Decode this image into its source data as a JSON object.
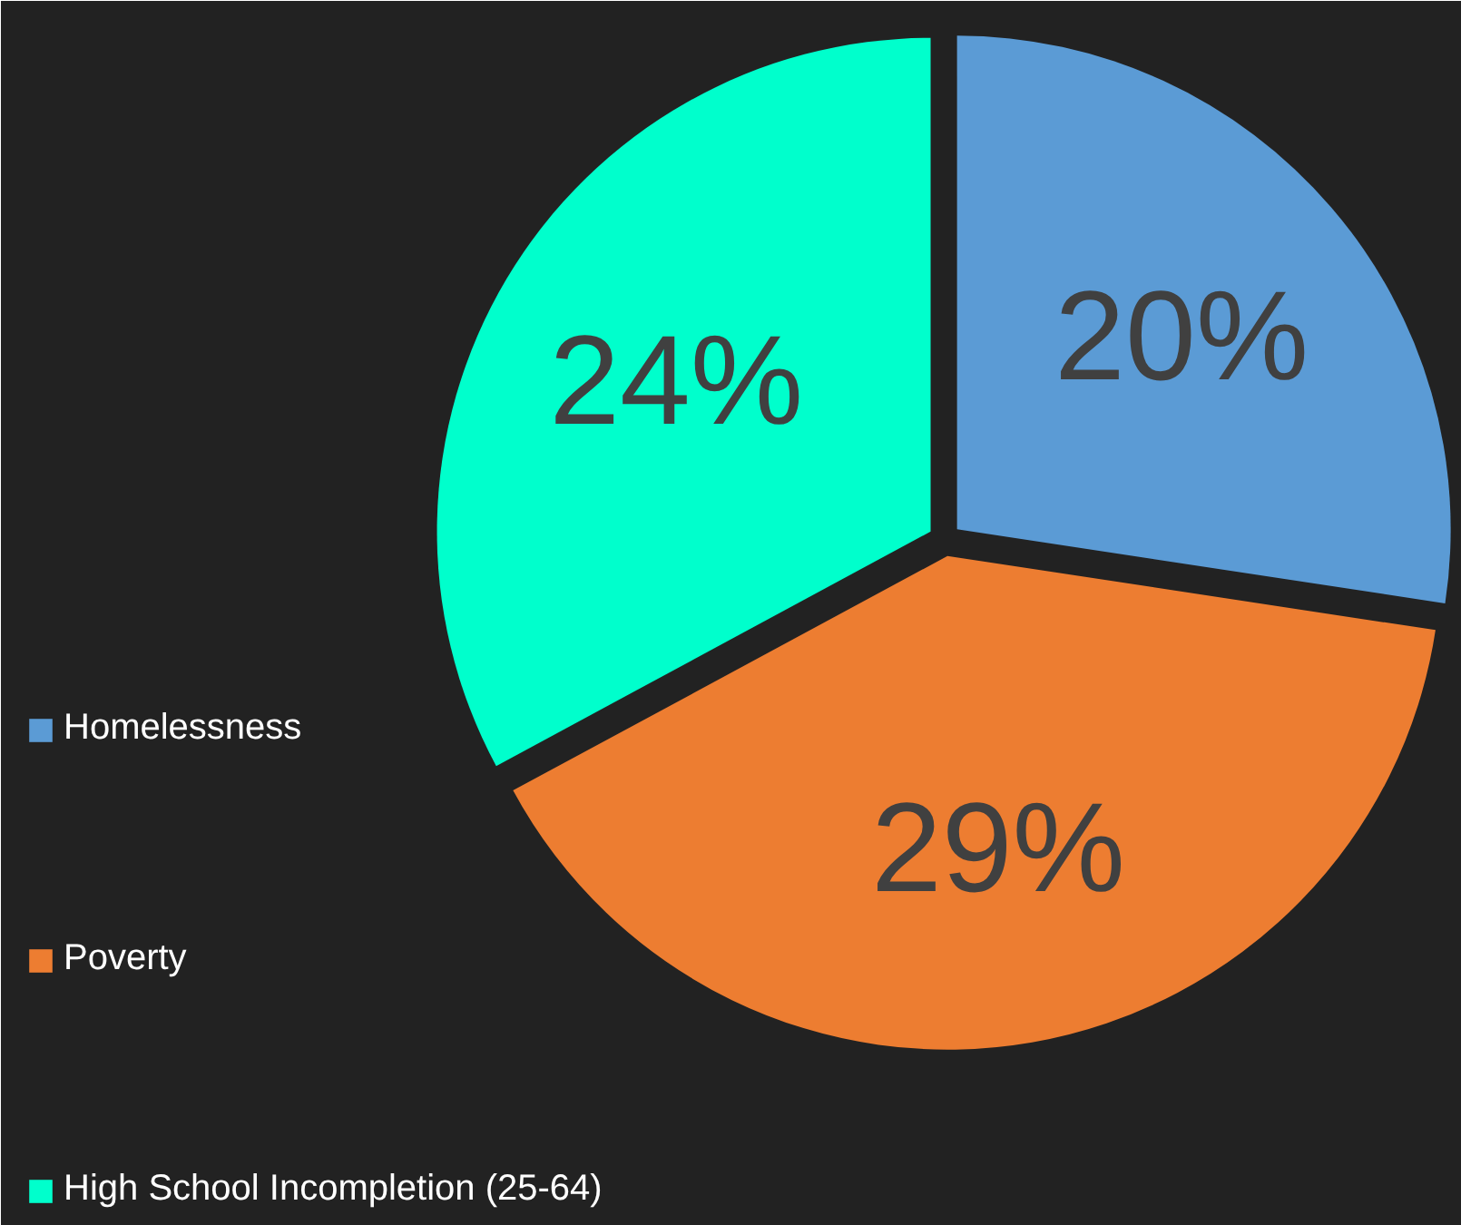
{
  "chart_data": {
    "type": "pie",
    "categories": [
      "Homelessness",
      "Poverty",
      "High School Incompletion (25-64)"
    ],
    "values": [
      20,
      29,
      24
    ],
    "colors": [
      "#5b9bd5",
      "#ed7d31",
      "#00ffcc"
    ],
    "value_labels": [
      "20%",
      "29%",
      "24%"
    ],
    "legend": "left"
  }
}
